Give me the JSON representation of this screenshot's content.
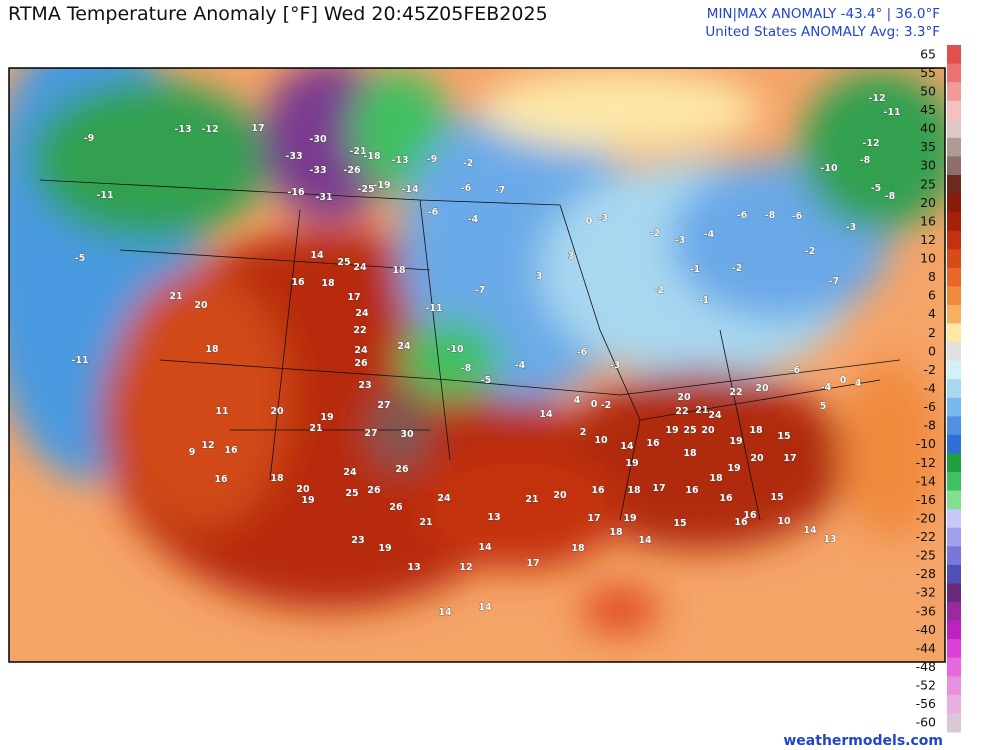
{
  "header": {
    "title": "RTMA Temperature Anomaly [°F]  Wed 20:45Z05FEB2025",
    "minmax": "MIN|MAX ANOMALY -43.4° | 36.0°F",
    "average": "United States ANOMALY Avg: 3.3°F"
  },
  "colorbar": {
    "levels": [
      65,
      55,
      50,
      45,
      40,
      35,
      30,
      25,
      20,
      16,
      12,
      10,
      8,
      6,
      4,
      2,
      0,
      -2,
      -4,
      -6,
      -8,
      -10,
      -12,
      -14,
      -16,
      -20,
      -22,
      -25,
      -28,
      -32,
      -36,
      -40,
      -44,
      -48,
      -52,
      -56,
      -60
    ],
    "colors": [
      "#e05050",
      "#ea7272",
      "#f09a9a",
      "#f4c0c0",
      "#e0c8c8",
      "#b09a96",
      "#8c6e6a",
      "#6b2a1c",
      "#8a1a0a",
      "#a8200a",
      "#c43010",
      "#d84a18",
      "#e8682a",
      "#f08a3c",
      "#f8b060",
      "#fde8a8",
      "#e0e0e0",
      "#d6f0f8",
      "#a8d8f0",
      "#78b8ec",
      "#5090e0",
      "#2e70d8",
      "#20a040",
      "#40c060",
      "#80e090",
      "#c8c8f8",
      "#a0a0ec",
      "#7878d8",
      "#5050b8",
      "#6a2a7a",
      "#9a2aa0",
      "#c020c0",
      "#e040d8",
      "#e868e0",
      "#e890e0",
      "#e8b0e0",
      "#d8c8d8"
    ]
  },
  "station_labels": [
    -30,
    -33,
    -33,
    -31,
    -16,
    -21,
    -26,
    -25,
    -19,
    -18,
    -13,
    -9,
    -14,
    -6,
    -2,
    -6,
    -7,
    -4,
    -11,
    -10,
    14,
    25,
    24,
    18,
    16,
    18,
    17,
    24,
    22,
    24,
    24,
    26,
    23,
    27,
    30,
    27,
    26,
    24,
    25,
    26,
    26,
    24,
    21,
    13,
    21,
    20,
    16,
    17,
    19,
    18,
    17,
    16,
    16,
    16,
    15,
    18,
    19,
    14,
    16,
    19,
    25,
    20,
    19,
    18,
    19,
    20,
    17,
    18,
    15,
    22,
    21,
    20,
    24,
    22,
    20,
    20,
    21,
    18,
    11,
    20,
    21,
    19,
    18,
    20,
    19,
    23,
    19,
    13,
    14,
    12,
    17,
    14,
    14,
    18,
    18,
    14,
    15,
    16,
    10,
    13,
    14,
    12,
    16,
    9,
    16,
    -9,
    -13,
    -12,
    17,
    -11,
    -5,
    -11,
    10,
    2,
    14,
    4,
    0,
    -2,
    -3,
    -6,
    -4,
    -5,
    -8,
    -7,
    3,
    3,
    0,
    -3,
    -2,
    -4,
    -3,
    -6,
    -8,
    -6,
    -2,
    -7,
    -3,
    -10,
    -8,
    -12,
    -11,
    -12,
    -5,
    -8,
    0,
    4,
    5,
    -4,
    -6,
    -2,
    -1,
    -2,
    -1
  ],
  "footer": "weathermodels.com"
}
